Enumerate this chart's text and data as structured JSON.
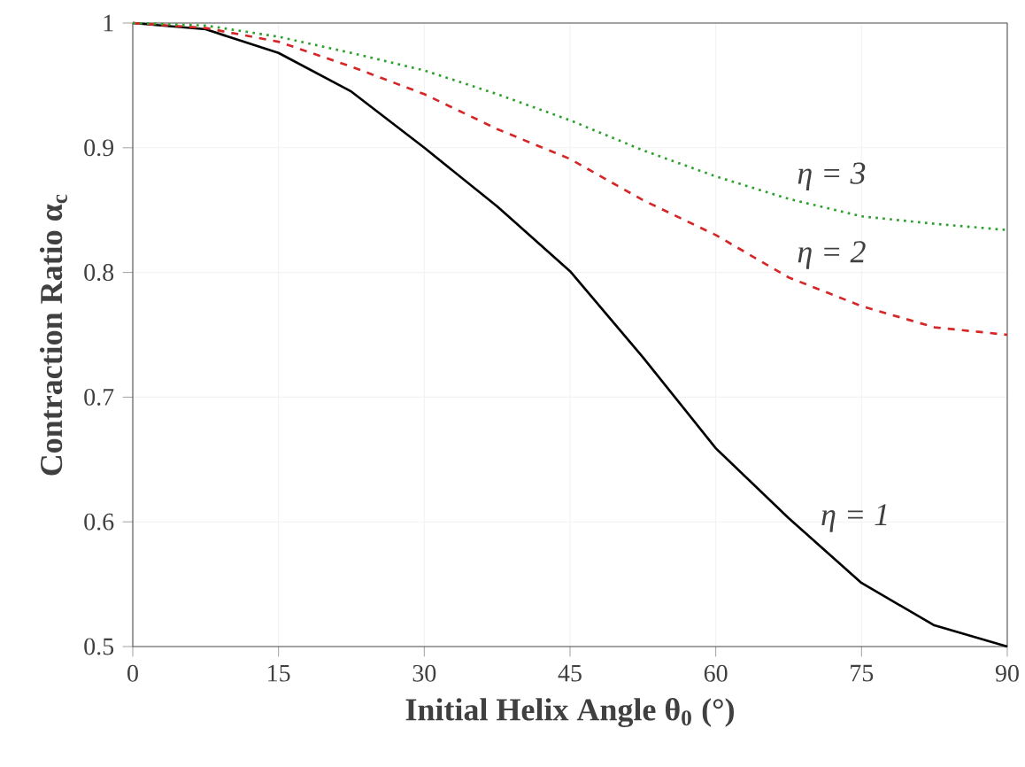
{
  "chart_data": {
    "type": "line",
    "xlabel": "Initial Helix Angle θ$_{0}$ (°)",
    "ylabel": "Contraction Ratio α$_{c}$",
    "x": [
      0,
      7.5,
      15,
      22.5,
      30,
      37.5,
      45,
      52.5,
      60,
      67.5,
      75,
      82.5,
      90
    ],
    "series": [
      {
        "name": "η = 1",
        "color": "#000000",
        "line_style": "solid",
        "values": [
          1,
          0.995,
          0.976,
          0.945,
          0.9,
          0.853,
          0.801,
          0.732,
          0.659,
          0.603,
          0.551,
          0.517,
          0.5
        ]
      },
      {
        "name": "η = 2",
        "color": "#d62728",
        "line_style": "dashed",
        "values": [
          1,
          0.996,
          0.985,
          0.965,
          0.943,
          0.915,
          0.891,
          0.858,
          0.83,
          0.796,
          0.773,
          0.756,
          0.75
        ]
      },
      {
        "name": "η = 3",
        "color": "#2ca02c",
        "line_style": "dotted",
        "values": [
          1,
          0.998,
          0.989,
          0.976,
          0.962,
          0.943,
          0.922,
          0.898,
          0.877,
          0.859,
          0.845,
          0.839,
          0.834
        ]
      }
    ],
    "xlim": [
      0,
      90
    ],
    "ylim": [
      0.5,
      1
    ],
    "xticks": [
      0,
      15,
      30,
      45,
      60,
      75,
      90
    ],
    "yticks": [
      0.5,
      0.6,
      0.7,
      0.8,
      0.9,
      1
    ],
    "grid": true,
    "legend": false,
    "marker": "none"
  }
}
